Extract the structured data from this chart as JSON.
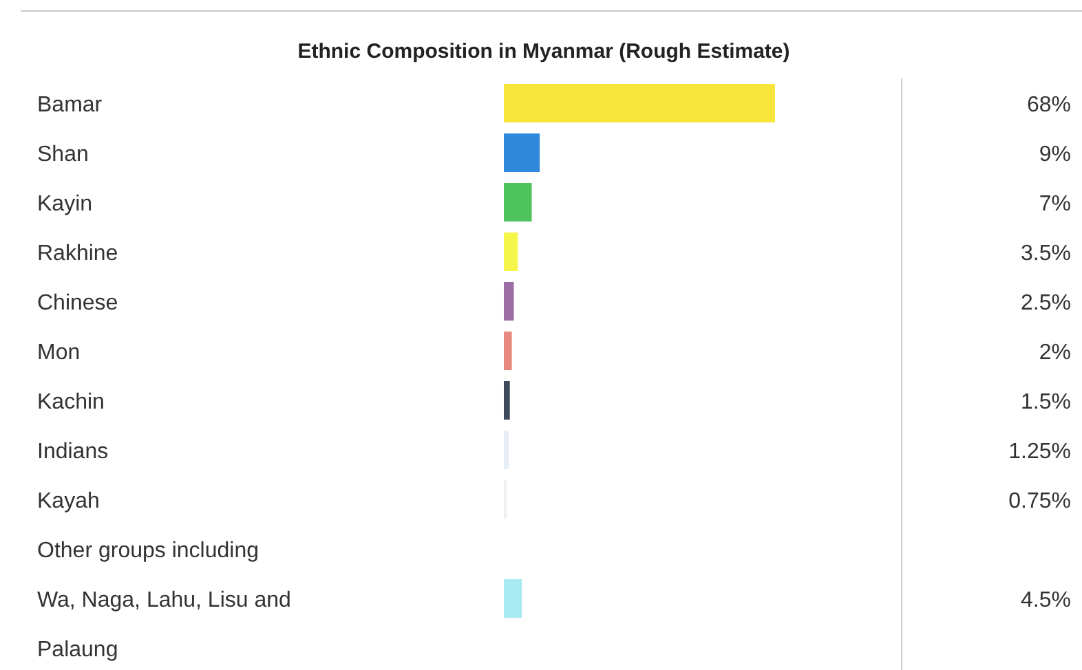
{
  "chart_data": {
    "type": "bar",
    "orientation": "horizontal",
    "title": "Ethnic Composition in Myanmar (Rough Estimate)",
    "categories": [
      "Bamar",
      "Shan",
      "Kayin",
      "Rakhine",
      "Chinese",
      "Mon",
      "Kachin",
      "Indians",
      "Kayah",
      "Other groups including Wa, Naga, Lahu, Lisu and Palaung"
    ],
    "values": [
      68,
      9,
      7,
      3.5,
      2.5,
      2,
      1.5,
      1.25,
      0.75,
      4.5
    ],
    "colors": [
      "#f7e53c",
      "#2f88dc",
      "#4fc45e",
      "#f5f54a",
      "#9b6fa3",
      "#e8877d",
      "#3c4a5a",
      "#e6edf5",
      "#f0f0f0",
      "#a8e9f2"
    ],
    "value_labels": [
      "68%",
      "9%",
      "7%",
      "3.5%",
      "2.5%",
      "2%",
      "1.5%",
      "1.25%",
      "0.75%",
      "4.5%"
    ]
  }
}
